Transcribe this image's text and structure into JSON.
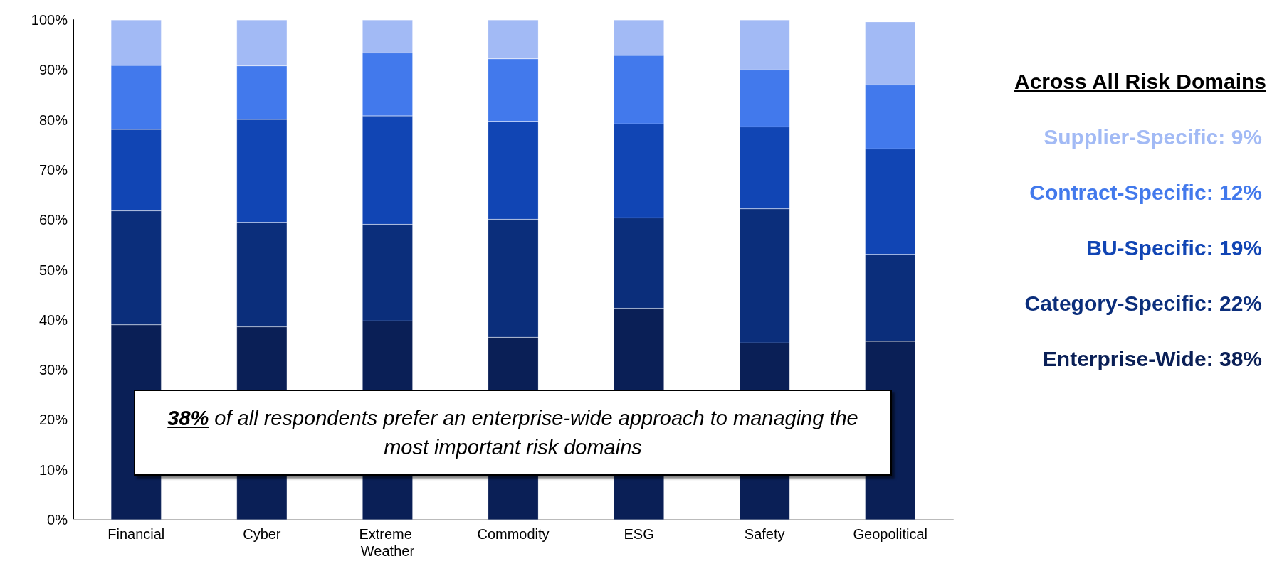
{
  "chart_data": {
    "type": "bar",
    "stacked": true,
    "categories": [
      "Financial",
      "Cyber",
      "Extreme Weather",
      "Commodity",
      "ESG",
      "Safety",
      "Geopolitical"
    ],
    "series": [
      {
        "name": "Enterprise-Wide: 38%",
        "color": "#0a1f56",
        "values": [
          39.0,
          38.6,
          39.8,
          36.5,
          42.3,
          35.4,
          35.7
        ]
      },
      {
        "name": "Category-Specific: 22%",
        "color": "#0b2e7b",
        "values": [
          22.8,
          20.9,
          19.3,
          23.6,
          18.1,
          26.8,
          17.4
        ]
      },
      {
        "name": "BU-Specific: 19%",
        "color": "#1145b4",
        "values": [
          16.3,
          20.6,
          21.7,
          19.6,
          18.8,
          16.4,
          21.1
        ]
      },
      {
        "name": "Contract-Specific: 12%",
        "color": "#4279ec",
        "values": [
          12.8,
          10.7,
          12.6,
          12.5,
          13.7,
          11.4,
          12.8
        ]
      },
      {
        "name": "Supplier-Specific: 9%",
        "color": "#a2baf5",
        "values": [
          9.1,
          9.2,
          6.6,
          7.8,
          7.1,
          10.0,
          12.6
        ]
      }
    ],
    "ylim": [
      0,
      100
    ],
    "yticks": [
      {
        "value": 0,
        "label": "0%"
      },
      {
        "value": 10,
        "label": "10%"
      },
      {
        "value": 20,
        "label": "20%"
      },
      {
        "value": 30,
        "label": "30%"
      },
      {
        "value": 40,
        "label": "40%"
      },
      {
        "value": 50,
        "label": "50%"
      },
      {
        "value": 60,
        "label": "60%"
      },
      {
        "value": 70,
        "label": "70%"
      },
      {
        "value": 80,
        "label": "80%"
      },
      {
        "value": 90,
        "label": "90%"
      },
      {
        "value": 100,
        "label": "100%"
      }
    ],
    "grid": false,
    "legend": "right",
    "legend_title": "Across All Risk Domains",
    "annotations": [
      "38% of all respondents prefer an enterprise-wide approach to managing the most important risk domains"
    ]
  }
}
